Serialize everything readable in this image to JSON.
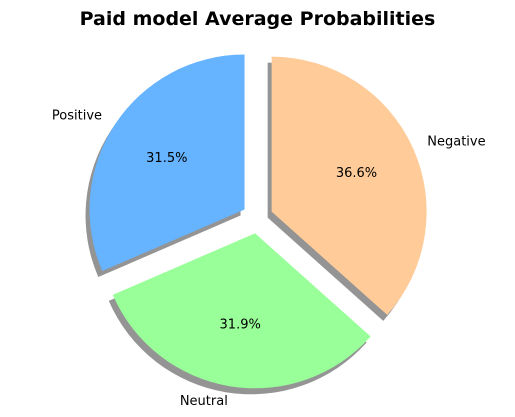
{
  "chart_data": {
    "type": "pie",
    "title": "Paid model Average Probabilities",
    "labels": [
      "Positive",
      "Neutral",
      "Negative"
    ],
    "values": [
      31.5,
      31.9,
      36.6
    ],
    "value_labels": [
      "31.5%",
      "31.9%",
      "36.6%"
    ],
    "colors": [
      "#66b3ff",
      "#99ff99",
      "#ffcc99"
    ],
    "explode": [
      0.1,
      0.1,
      0.1
    ],
    "shadow": true,
    "start_angle_deg": 90
  }
}
